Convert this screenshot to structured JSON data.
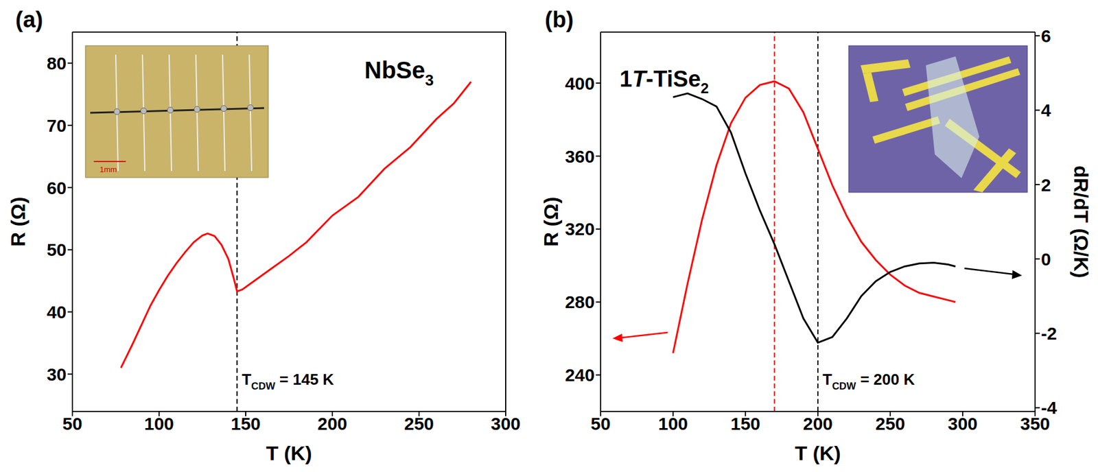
{
  "chart_data": [
    {
      "type": "line",
      "panel": "(a)",
      "title": [
        {
          "text": "NbSe"
        },
        {
          "text": "3",
          "sub": true
        }
      ],
      "inset_scale_bar": "1mm",
      "x_label": "T (K)",
      "y_label": "R (Ω)",
      "xlim": [
        50,
        300
      ],
      "xticks": [
        50,
        100,
        150,
        200,
        250,
        300
      ],
      "ylim": [
        24,
        85
      ],
      "yticks": [
        30,
        40,
        50,
        60,
        70,
        80
      ],
      "x": [
        78,
        85,
        90,
        95,
        100,
        105,
        110,
        115,
        120,
        125,
        128,
        132,
        136,
        140,
        143,
        145,
        148,
        155,
        165,
        175,
        185,
        200,
        215,
        230,
        245,
        260,
        270,
        280
      ],
      "series": [
        {
          "color": "#ff0000",
          "axis": "y",
          "values": [
            31,
            35,
            38,
            41,
            43.5,
            45.8,
            47.8,
            49.6,
            51.2,
            52.3,
            52.6,
            52.2,
            50.8,
            48.5,
            45.5,
            43.3,
            43.6,
            45,
            47,
            49,
            51.2,
            55.5,
            58.5,
            63,
            66.5,
            71,
            73.5,
            77
          ]
        }
      ],
      "reference_lines": [
        {
          "x": 145,
          "color": "#000000",
          "line_style": "dashed",
          "label": [
            {
              "text": "T"
            },
            {
              "text": "CDW",
              "sub": true
            },
            {
              "text": " = 145 K"
            }
          ]
        }
      ]
    },
    {
      "type": "line",
      "panel": "(b)",
      "title": [
        {
          "text": "1"
        },
        {
          "text": "T",
          "italic": true
        },
        {
          "text": "-TiSe"
        },
        {
          "text": "2",
          "sub": true
        }
      ],
      "x_label": "T (K)",
      "y_label": "R (Ω)",
      "y2_label": "dR/dT (Ω/K)",
      "xlim": [
        50,
        350
      ],
      "xticks": [
        50,
        100,
        150,
        200,
        250,
        300,
        350
      ],
      "ylim": [
        220,
        428
      ],
      "yticks": [
        240,
        280,
        320,
        360,
        400
      ],
      "y2lim": [
        -4.1,
        6.1
      ],
      "y2ticks": [
        -4,
        -2,
        0,
        2,
        4,
        6
      ],
      "x": [
        100,
        110,
        120,
        130,
        140,
        150,
        160,
        170,
        180,
        190,
        200,
        210,
        220,
        230,
        240,
        250,
        260,
        270,
        280,
        290,
        295
      ],
      "series": [
        {
          "color": "#ff0000",
          "axis": "y",
          "values": [
            252,
            290,
            325,
            355,
            378,
            392,
            399,
            401,
            397,
            384,
            364,
            344,
            327,
            313,
            303,
            295,
            289,
            285,
            283,
            281,
            280
          ]
        },
        {
          "color": "#000000",
          "axis": "y2",
          "values": [
            4.35,
            4.45,
            4.3,
            4.1,
            3.4,
            2.3,
            1.3,
            0.4,
            -0.6,
            -1.6,
            -2.25,
            -2.1,
            -1.6,
            -1.0,
            -0.6,
            -0.35,
            -0.2,
            -0.12,
            -0.1,
            -0.15,
            -0.2
          ]
        }
      ],
      "reference_lines": [
        {
          "x": 170,
          "color": "#ff0000",
          "line_style": "dashed"
        },
        {
          "x": 200,
          "color": "#000000",
          "line_style": "dashed",
          "label": [
            {
              "text": "T"
            },
            {
              "text": "CDW",
              "sub": true
            },
            {
              "text": " = 200 K"
            }
          ]
        }
      ]
    }
  ]
}
